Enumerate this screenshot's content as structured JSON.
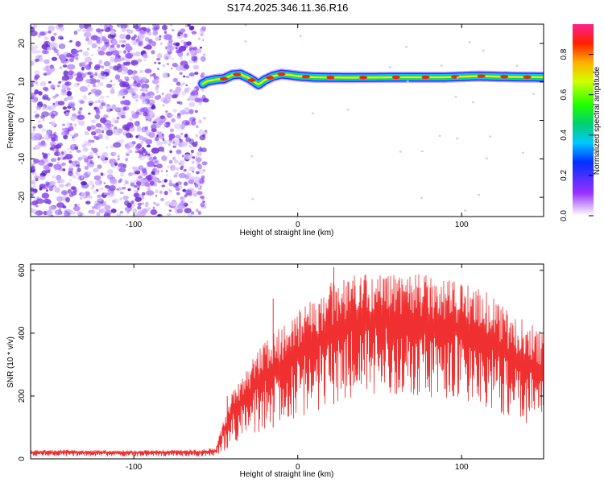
{
  "figure": {
    "title": "S174.2025.346.11.36.R16"
  },
  "chart_data": [
    {
      "type": "heatmap",
      "name": "spectrogram",
      "xlabel": "Height of straight line (km)",
      "ylabel": "Frequency (Hz)",
      "xlim": [
        -163,
        150
      ],
      "ylim": [
        -25,
        25
      ],
      "xticks": [
        -100,
        0,
        100
      ],
      "yticks": [
        -20,
        -10,
        0,
        10,
        20
      ],
      "noise_region_x": [
        -163,
        -58
      ],
      "ridge": {
        "x": [
          -58,
          -55,
          -50,
          -45,
          -40,
          -35,
          -30,
          -27,
          -24,
          -20,
          -15,
          -10,
          -5,
          0,
          10,
          30,
          60,
          90,
          110,
          130,
          150
        ],
        "freq": [
          9.5,
          10.2,
          10.6,
          10.8,
          11.8,
          12.0,
          11.0,
          10.2,
          9.3,
          10.5,
          11.5,
          12.0,
          11.8,
          11.5,
          11.2,
          11.1,
          11.2,
          11.2,
          11.5,
          11.3,
          11.2
        ]
      },
      "hotspots_x": [
        -45,
        -37,
        -28,
        -17,
        -10,
        5,
        20,
        40,
        60,
        78,
        96,
        112,
        126,
        140
      ],
      "colorbar": {
        "label": "Normalized spectral amplitude",
        "range": [
          0,
          0.95
        ],
        "ticks": [
          "0.0",
          "0.2",
          "0.4",
          "0.6",
          "0.8"
        ],
        "tick_values": [
          0,
          0.2,
          0.4,
          0.6,
          0.8
        ]
      }
    },
    {
      "type": "line",
      "name": "snr",
      "xlabel": "Height of straight line (km)",
      "ylabel": "SNR (10 * v/v)",
      "xlim": [
        -163,
        150
      ],
      "ylim": [
        0,
        620
      ],
      "xticks": [
        -100,
        0,
        100
      ],
      "yticks": [
        0,
        200,
        400,
        600
      ],
      "color": "#f03030",
      "envelope": {
        "x": [
          -163,
          -100,
          -60,
          -50,
          -45,
          -40,
          -30,
          -20,
          -10,
          0,
          10,
          20,
          30,
          40,
          60,
          80,
          100,
          110,
          120,
          130,
          140,
          150
        ],
        "max": [
          30,
          28,
          30,
          35,
          130,
          220,
          300,
          380,
          420,
          470,
          510,
          560,
          580,
          590,
          595,
          585,
          560,
          545,
          520,
          460,
          440,
          400
        ],
        "min": [
          8,
          8,
          8,
          8,
          25,
          45,
          70,
          90,
          110,
          130,
          150,
          170,
          190,
          200,
          200,
          195,
          190,
          160,
          140,
          120,
          100,
          90
        ]
      },
      "spikes": [
        {
          "x": 22,
          "y": 610
        },
        {
          "x": -15,
          "y": 510
        },
        {
          "x": -43,
          "y": 200
        }
      ]
    }
  ]
}
